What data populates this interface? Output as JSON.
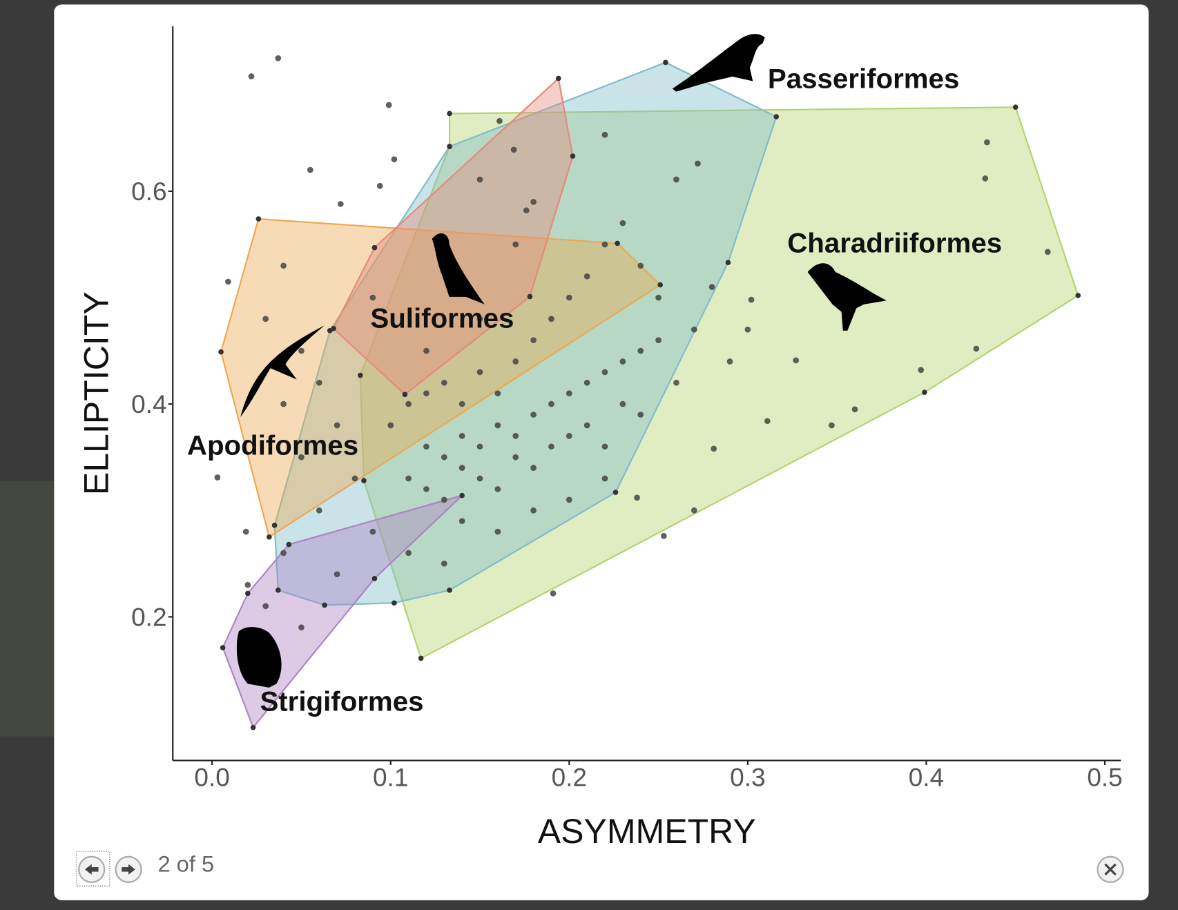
{
  "chart_data": {
    "type": "scatter",
    "xlabel": "ASYMMETRY",
    "ylabel": "ELLIPTICITY",
    "xlim": [
      -0.022,
      0.509
    ],
    "ylim": [
      0.065,
      0.755
    ],
    "xticks": [
      {
        "value": 0,
        "label": "0.0"
      },
      0.1,
      0.2,
      0.3,
      0.4,
      0.5
    ],
    "yticks": [
      0.2,
      0.4,
      0.6
    ],
    "color": "#444444",
    "x": [
      0.037,
      0.022,
      0.099,
      0.102,
      0.055,
      0.094,
      0.072,
      0.009,
      0.003,
      0.019,
      0.253,
      0.191,
      0.434,
      0.433,
      0.468,
      0.428,
      0.397,
      0.347,
      0.36,
      0.311,
      0.327,
      0.302,
      0.272,
      0.26,
      0.281,
      0.27,
      0.238,
      0.22,
      0.161,
      0.169,
      0.15,
      0.176,
      0.129,
      0.12,
      0.13,
      0.14,
      0.15,
      0.16,
      0.17,
      0.18,
      0.19,
      0.2,
      0.21,
      0.22,
      0.23,
      0.24,
      0.25,
      0.11,
      0.12,
      0.13,
      0.14,
      0.15,
      0.16,
      0.17,
      0.18,
      0.19,
      0.2,
      0.21,
      0.22,
      0.23,
      0.24,
      0.1,
      0.11,
      0.12,
      0.13,
      0.14,
      0.15,
      0.16,
      0.17,
      0.18,
      0.19,
      0.2,
      0.21,
      0.22,
      0.23,
      0.05,
      0.06,
      0.04,
      0.07,
      0.05,
      0.08,
      0.06,
      0.04,
      0.07,
      0.03,
      0.05,
      0.02,
      0.09,
      0.11,
      0.13,
      0.14,
      0.16,
      0.18,
      0.2,
      0.22,
      0.26,
      0.27,
      0.28,
      0.25,
      0.24,
      0.29,
      0.3,
      0.15,
      0.14,
      0.12,
      0.17,
      0.18,
      0.09,
      0.03,
      0.04
    ],
    "values": [
      0.725,
      0.708,
      0.681,
      0.63,
      0.62,
      0.605,
      0.588,
      0.515,
      0.331,
      0.28,
      0.276,
      0.222,
      0.646,
      0.612,
      0.543,
      0.452,
      0.432,
      0.38,
      0.395,
      0.384,
      0.441,
      0.498,
      0.626,
      0.611,
      0.358,
      0.3,
      0.312,
      0.653,
      0.666,
      0.639,
      0.611,
      0.582,
      0.54,
      0.36,
      0.35,
      0.37,
      0.36,
      0.38,
      0.37,
      0.39,
      0.4,
      0.41,
      0.42,
      0.43,
      0.44,
      0.45,
      0.46,
      0.33,
      0.32,
      0.31,
      0.34,
      0.33,
      0.32,
      0.35,
      0.34,
      0.36,
      0.37,
      0.38,
      0.36,
      0.4,
      0.39,
      0.38,
      0.4,
      0.41,
      0.42,
      0.4,
      0.43,
      0.41,
      0.44,
      0.46,
      0.48,
      0.5,
      0.52,
      0.55,
      0.57,
      0.45,
      0.42,
      0.4,
      0.38,
      0.35,
      0.33,
      0.3,
      0.26,
      0.24,
      0.21,
      0.19,
      0.23,
      0.28,
      0.26,
      0.25,
      0.29,
      0.28,
      0.3,
      0.31,
      0.33,
      0.42,
      0.47,
      0.51,
      0.5,
      0.53,
      0.44,
      0.47,
      0.48,
      0.51,
      0.45,
      0.55,
      0.59,
      0.5,
      0.48,
      0.53
    ],
    "hulls": [
      {
        "name": "Charadriiformes",
        "color": "#b5d36e",
        "x": [
          0.133,
          0.45,
          0.485,
          0.399,
          0.117,
          0.085,
          0.083,
          0.133
        ],
        "y": [
          0.673,
          0.679,
          0.502,
          0.411,
          0.161,
          0.328,
          0.427,
          0.642
        ]
      },
      {
        "name": "Passeriformes",
        "color": "#7fbccb",
        "x": [
          0.254,
          0.316,
          0.289,
          0.226,
          0.133,
          0.102,
          0.063,
          0.037,
          0.035,
          0.066,
          0.133
        ],
        "y": [
          0.721,
          0.67,
          0.533,
          0.317,
          0.225,
          0.213,
          0.211,
          0.225,
          0.286,
          0.469,
          0.642
        ]
      },
      {
        "name": "Apodiformes",
        "color": "#eba952",
        "x": [
          0.026,
          0.227,
          0.251,
          0.032,
          0.005
        ],
        "y": [
          0.574,
          0.551,
          0.512,
          0.275,
          0.449
        ]
      },
      {
        "name": "Suliformes",
        "color": "#e48a7c",
        "x": [
          0.194,
          0.202,
          0.178,
          0.108,
          0.068,
          0.091
        ],
        "y": [
          0.706,
          0.633,
          0.501,
          0.409,
          0.471,
          0.547
        ]
      },
      {
        "name": "Strigiformes",
        "color": "#ad84c4",
        "x": [
          0.006,
          0.02,
          0.043,
          0.14,
          0.091,
          0.023
        ],
        "y": [
          0.171,
          0.222,
          0.268,
          0.314,
          0.236,
          0.096
        ]
      }
    ]
  },
  "lightbox": {
    "counter": "2 of 5"
  }
}
